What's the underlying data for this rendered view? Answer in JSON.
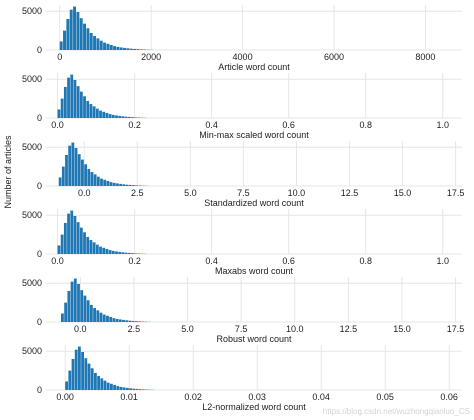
{
  "figure": {
    "ylabel": "Number of articles",
    "watermark": "https://blog.csdn.net/wuzhongqianluo_CS",
    "colors": {
      "bar": "#1f77b4",
      "grid": "#e6e6e6",
      "panel_bg": "#ffffff",
      "text": "#222222"
    }
  },
  "chart_data": [
    {
      "type": "bar",
      "title": "",
      "xlabel": "Article word count",
      "ylabel": "",
      "xlim": [
        -300,
        8800
      ],
      "ylim": [
        0,
        5800
      ],
      "xticks": [
        0,
        2000,
        4000,
        6000,
        8000
      ],
      "xtick_labels": [
        "0",
        "2000",
        "4000",
        "6000",
        "8000"
      ],
      "yticks": [
        0,
        5000
      ],
      "ytick_labels": [
        "0",
        "5000"
      ],
      "grid": true,
      "bin_edges": [
        0,
        73,
        146,
        219,
        292,
        365,
        438,
        511,
        584,
        657,
        730,
        803,
        876,
        949,
        1022,
        1095,
        1168,
        1241,
        1314,
        1387,
        1460,
        1533,
        1606,
        1679,
        1752,
        1825,
        1898,
        1971,
        2044
      ],
      "values": [
        1100,
        2500,
        4000,
        5200,
        5600,
        4900,
        4100,
        3400,
        2800,
        2200,
        1800,
        1500,
        1200,
        950,
        800,
        650,
        500,
        400,
        330,
        270,
        220,
        170,
        140,
        110,
        80,
        60,
        40,
        25
      ]
    },
    {
      "type": "bar",
      "title": "",
      "xlabel": "Min-max scaled word count",
      "ylabel": "",
      "xlim": [
        -0.03,
        1.05
      ],
      "ylim": [
        0,
        5800
      ],
      "xticks": [
        0.0,
        0.2,
        0.4,
        0.6,
        0.8,
        1.0
      ],
      "xtick_labels": [
        "0.0",
        "0.2",
        "0.4",
        "0.6",
        "0.8",
        "1.0"
      ],
      "yticks": [
        0,
        5000
      ],
      "ytick_labels": [
        "0",
        "5000"
      ],
      "grid": true,
      "bin_edges": [
        0,
        0.0083,
        0.0166,
        0.0249,
        0.0332,
        0.0415,
        0.0498,
        0.0581,
        0.0664,
        0.0747,
        0.083,
        0.0913,
        0.0996,
        0.1079,
        0.1162,
        0.1245,
        0.1328,
        0.1411,
        0.1494,
        0.1577,
        0.166,
        0.1743,
        0.1826,
        0.1909,
        0.1992,
        0.2075,
        0.2158,
        0.2241,
        0.2324
      ],
      "values": [
        1100,
        2500,
        4000,
        5200,
        5600,
        4900,
        4100,
        3400,
        2800,
        2200,
        1800,
        1500,
        1200,
        950,
        800,
        650,
        500,
        400,
        330,
        270,
        220,
        170,
        140,
        110,
        80,
        60,
        40,
        25
      ]
    },
    {
      "type": "bar",
      "title": "",
      "xlabel": "Standardized word count",
      "ylabel": "",
      "xlim": [
        -1.8,
        17.8
      ],
      "ylim": [
        0,
        5800
      ],
      "xticks": [
        0.0,
        2.5,
        5.0,
        7.5,
        10.0,
        12.5,
        15.0,
        17.5
      ],
      "xtick_labels": [
        "0.0",
        "2.5",
        "5.0",
        "7.5",
        "10.0",
        "12.5",
        "15.0",
        "17.5"
      ],
      "yticks": [
        0,
        5000
      ],
      "ytick_labels": [
        "0",
        "5000"
      ],
      "grid": true,
      "bin_edges": [
        -1.2,
        -1.05,
        -0.9,
        -0.75,
        -0.6,
        -0.45,
        -0.3,
        -0.15,
        0.0,
        0.15,
        0.3,
        0.45,
        0.6,
        0.75,
        0.9,
        1.05,
        1.2,
        1.35,
        1.5,
        1.65,
        1.8,
        1.95,
        2.1,
        2.25,
        2.4,
        2.55,
        2.7,
        2.85,
        3.0
      ],
      "values": [
        1100,
        2500,
        4000,
        5200,
        5600,
        4900,
        4100,
        3400,
        2800,
        2200,
        1800,
        1500,
        1200,
        950,
        800,
        650,
        500,
        400,
        330,
        270,
        220,
        170,
        140,
        110,
        80,
        60,
        40,
        25
      ]
    },
    {
      "type": "bar",
      "title": "",
      "xlabel": "Maxabs word count",
      "ylabel": "",
      "xlim": [
        -0.03,
        1.05
      ],
      "ylim": [
        0,
        5800
      ],
      "xticks": [
        0.0,
        0.2,
        0.4,
        0.6,
        0.8,
        1.0
      ],
      "xtick_labels": [
        "0.0",
        "0.2",
        "0.4",
        "0.6",
        "0.8",
        "1.0"
      ],
      "yticks": [
        0,
        5000
      ],
      "ytick_labels": [
        "0",
        "5000"
      ],
      "grid": true,
      "bin_edges": [
        0,
        0.0083,
        0.0166,
        0.0249,
        0.0332,
        0.0415,
        0.0498,
        0.0581,
        0.0664,
        0.0747,
        0.083,
        0.0913,
        0.0996,
        0.1079,
        0.1162,
        0.1245,
        0.1328,
        0.1411,
        0.1494,
        0.1577,
        0.166,
        0.1743,
        0.1826,
        0.1909,
        0.1992,
        0.2075,
        0.2158,
        0.2241,
        0.2324
      ],
      "values": [
        1100,
        2500,
        4000,
        5200,
        5600,
        4900,
        4100,
        3400,
        2800,
        2200,
        1800,
        1500,
        1200,
        950,
        800,
        650,
        500,
        400,
        330,
        270,
        220,
        170,
        140,
        110,
        80,
        60,
        40,
        25
      ]
    },
    {
      "type": "bar",
      "title": "",
      "xlabel": "Robust word count",
      "ylabel": "",
      "xlim": [
        -1.6,
        17.8
      ],
      "ylim": [
        0,
        5800
      ],
      "xticks": [
        0.0,
        2.5,
        5.0,
        7.5,
        10.0,
        12.5,
        15.0,
        17.5
      ],
      "xtick_labels": [
        "0.0",
        "2.5",
        "5.0",
        "7.5",
        "10.0",
        "12.5",
        "15.0",
        "17.5"
      ],
      "yticks": [
        0,
        5000
      ],
      "ytick_labels": [
        "0",
        "5000"
      ],
      "grid": true,
      "bin_edges": [
        -0.9,
        -0.75,
        -0.6,
        -0.45,
        -0.3,
        -0.15,
        0.0,
        0.15,
        0.3,
        0.45,
        0.6,
        0.75,
        0.9,
        1.05,
        1.2,
        1.35,
        1.5,
        1.65,
        1.8,
        1.95,
        2.1,
        2.25,
        2.4,
        2.55,
        2.7,
        2.85,
        3.0,
        3.15,
        3.3
      ],
      "values": [
        1100,
        2500,
        4000,
        5200,
        5600,
        4900,
        4100,
        3400,
        2800,
        2200,
        1800,
        1500,
        1200,
        950,
        800,
        650,
        500,
        400,
        330,
        270,
        220,
        170,
        140,
        110,
        80,
        60,
        40,
        25
      ]
    },
    {
      "type": "bar",
      "title": "",
      "xlabel": "L2-normalized word count",
      "ylabel": "",
      "xlim": [
        -0.003,
        0.062
      ],
      "ylim": [
        0,
        5800
      ],
      "xticks": [
        0.0,
        0.01,
        0.02,
        0.03,
        0.04,
        0.05,
        0.06
      ],
      "xtick_labels": [
        "0.00",
        "0.01",
        "0.02",
        "0.03",
        "0.04",
        "0.05",
        "0.06"
      ],
      "yticks": [
        0,
        5000
      ],
      "ytick_labels": [
        "0",
        "5000"
      ],
      "grid": true,
      "bin_edges": [
        0,
        0.0005,
        0.001,
        0.0015,
        0.002,
        0.0025,
        0.003,
        0.0035,
        0.004,
        0.0045,
        0.005,
        0.0055,
        0.006,
        0.0065,
        0.007,
        0.0075,
        0.008,
        0.0085,
        0.009,
        0.0095,
        0.01,
        0.0105,
        0.011,
        0.0115,
        0.012,
        0.0125,
        0.013,
        0.0135,
        0.014
      ],
      "values": [
        1100,
        2500,
        4000,
        5200,
        5600,
        4900,
        4100,
        3400,
        2800,
        2200,
        1800,
        1500,
        1200,
        950,
        800,
        650,
        500,
        400,
        330,
        270,
        220,
        170,
        140,
        110,
        80,
        60,
        40,
        25
      ]
    }
  ]
}
